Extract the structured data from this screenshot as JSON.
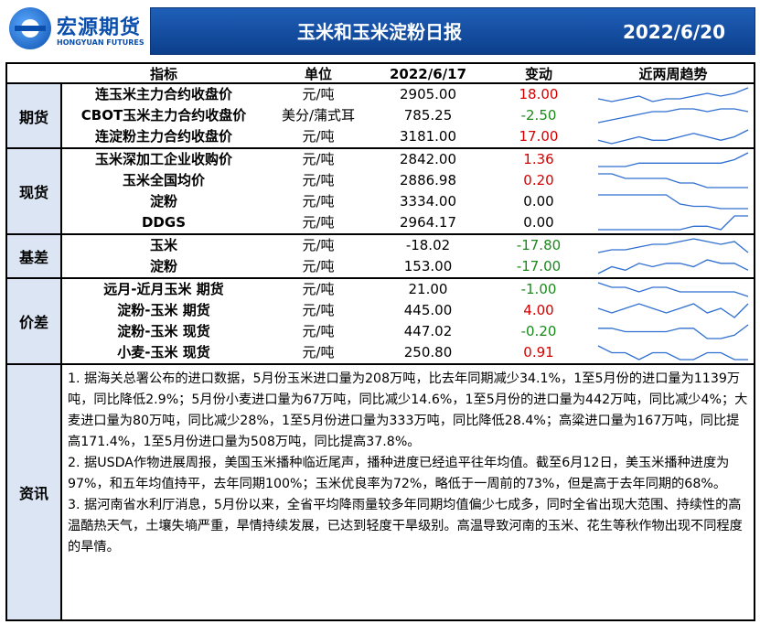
{
  "header": {
    "logo_cn": "宏源期货",
    "logo_en": "HONGYUAN FUTURES",
    "title": "玉米和玉米淀粉日报",
    "date": "2022/6/20"
  },
  "columns": {
    "indicator": "指标",
    "unit": "单位",
    "date": "2022/6/17",
    "change": "变动",
    "trend": "近两周趋势"
  },
  "groups": [
    {
      "label": "期货",
      "rows": [
        {
          "name": "连玉米主力合约收盘价",
          "unit": "元/吨",
          "value": "2905.00",
          "change": "18.00",
          "dir": "up",
          "trend": [
            5,
            4,
            5,
            6,
            4,
            5,
            5,
            6,
            7,
            6,
            7,
            9
          ]
        },
        {
          "name": "CBOT玉米主力合约收盘价",
          "unit": "美分/蒲式耳",
          "value": "785.25",
          "change": "-2.50",
          "dir": "down",
          "trend": [
            3,
            4,
            5,
            6,
            7,
            7,
            8,
            8,
            7,
            8,
            8,
            7
          ]
        },
        {
          "name": "连淀粉主力合约收盘价",
          "unit": "元/吨",
          "value": "3181.00",
          "change": "17.00",
          "dir": "up",
          "trend": [
            5,
            4,
            5,
            6,
            5,
            5,
            6,
            7,
            6,
            5,
            6,
            8
          ]
        }
      ]
    },
    {
      "label": "现货",
      "rows": [
        {
          "name": "玉米深加工企业收购价",
          "unit": "元/吨",
          "value": "2842.00",
          "change": "1.36",
          "dir": "up",
          "trend": [
            5,
            5,
            5,
            6,
            6,
            6,
            6,
            6,
            6,
            6,
            7,
            9
          ]
        },
        {
          "name": "玉米全国均价",
          "unit": "元/吨",
          "value": "2886.98",
          "change": "0.20",
          "dir": "up",
          "trend": [
            7,
            7,
            6,
            6,
            6,
            6,
            5,
            5,
            4,
            4,
            4,
            4
          ]
        },
        {
          "name": "淀粉",
          "unit": "元/吨",
          "value": "3334.00",
          "change": "0.00",
          "dir": "flat",
          "trend": [
            8,
            8,
            8,
            8,
            8,
            8,
            4,
            3,
            3,
            2,
            2,
            2
          ]
        },
        {
          "name": "DDGS",
          "unit": "元/吨",
          "value": "2964.17",
          "change": "0.00",
          "dir": "flat",
          "trend": [
            3,
            3,
            3,
            3,
            3,
            3,
            3,
            4,
            4,
            3,
            7,
            7
          ]
        }
      ]
    },
    {
      "label": "基差",
      "rows": [
        {
          "name": "玉米",
          "unit": "元/吨",
          "value": "-18.02",
          "change": "-17.80",
          "dir": "down",
          "trend": [
            3,
            4,
            4,
            5,
            6,
            6,
            7,
            8,
            7,
            6,
            7,
            3
          ]
        },
        {
          "name": "淀粉",
          "unit": "元/吨",
          "value": "153.00",
          "change": "-17.00",
          "dir": "down",
          "trend": [
            3,
            5,
            4,
            6,
            5,
            6,
            6,
            5,
            7,
            6,
            6,
            4
          ]
        }
      ]
    },
    {
      "label": "价差",
      "rows": [
        {
          "name": "远月-近月玉米 期货",
          "unit": "元/吨",
          "value": "21.00",
          "change": "-1.00",
          "dir": "down",
          "trend": [
            8,
            7,
            7,
            6,
            7,
            7,
            6,
            6,
            6,
            6,
            6,
            5
          ]
        },
        {
          "name": "淀粉-玉米 期货",
          "unit": "元/吨",
          "value": "445.00",
          "change": "4.00",
          "dir": "up",
          "trend": [
            6,
            5,
            6,
            7,
            6,
            5,
            6,
            7,
            5,
            6,
            4,
            7
          ]
        },
        {
          "name": "淀粉-玉米 现货",
          "unit": "元/吨",
          "value": "447.02",
          "change": "-0.20",
          "dir": "down",
          "trend": [
            6,
            6,
            5,
            5,
            5,
            5,
            6,
            6,
            3,
            3,
            4,
            7
          ]
        },
        {
          "name": "小麦-玉米 现货",
          "unit": "元/吨",
          "value": "250.80",
          "change": "0.91",
          "dir": "up",
          "trend": [
            7,
            6,
            6,
            5,
            6,
            6,
            5,
            5,
            6,
            6,
            5,
            5
          ]
        }
      ]
    }
  ],
  "news": {
    "label": "资讯",
    "paragraphs": [
      "1. 据海关总署公布的进口数据，5月份玉米进口量为208万吨，比去年同期减少34.1%，1至5月份的进口量为1139万吨，同比降低2.9%；5月份小麦进口量为67万吨，同比减少14.6%，1至5月份的进口量为442万吨，同比减少4%；大麦进口量为80万吨，同比减少28%，1至5月份进口量为333万吨，同比降低28.4%；高粱进口量为167万吨，同比提高171.4%，1至5月份进口量为508万吨，同比提高37.8%。",
      "2. 据USDA作物进展周报，美国玉米播种临近尾声，播种进度已经追平往年均值。截至6月12日，美玉米播种进度为97%，和五年均值持平，去年同期100%；玉米优良率为72%，略低于一周前的73%，但是高于去年同期的68%。",
      "3. 据河南省水利厅消息，5月份以来，全省平均降雨量较多年同期均值偏少七成多，同时全省出现大范围、持续性的高温酷热天气，土壤失墒严重，旱情持续发展，已达到轻度干旱级别。高温导致河南的玉米、花生等秋作物出现不同程度的旱情。"
    ]
  },
  "colors": {
    "brand_blue": "#0b4fae",
    "up": "#d40000",
    "down": "#1a8a1a",
    "sparkline": "#2f6fd0"
  }
}
